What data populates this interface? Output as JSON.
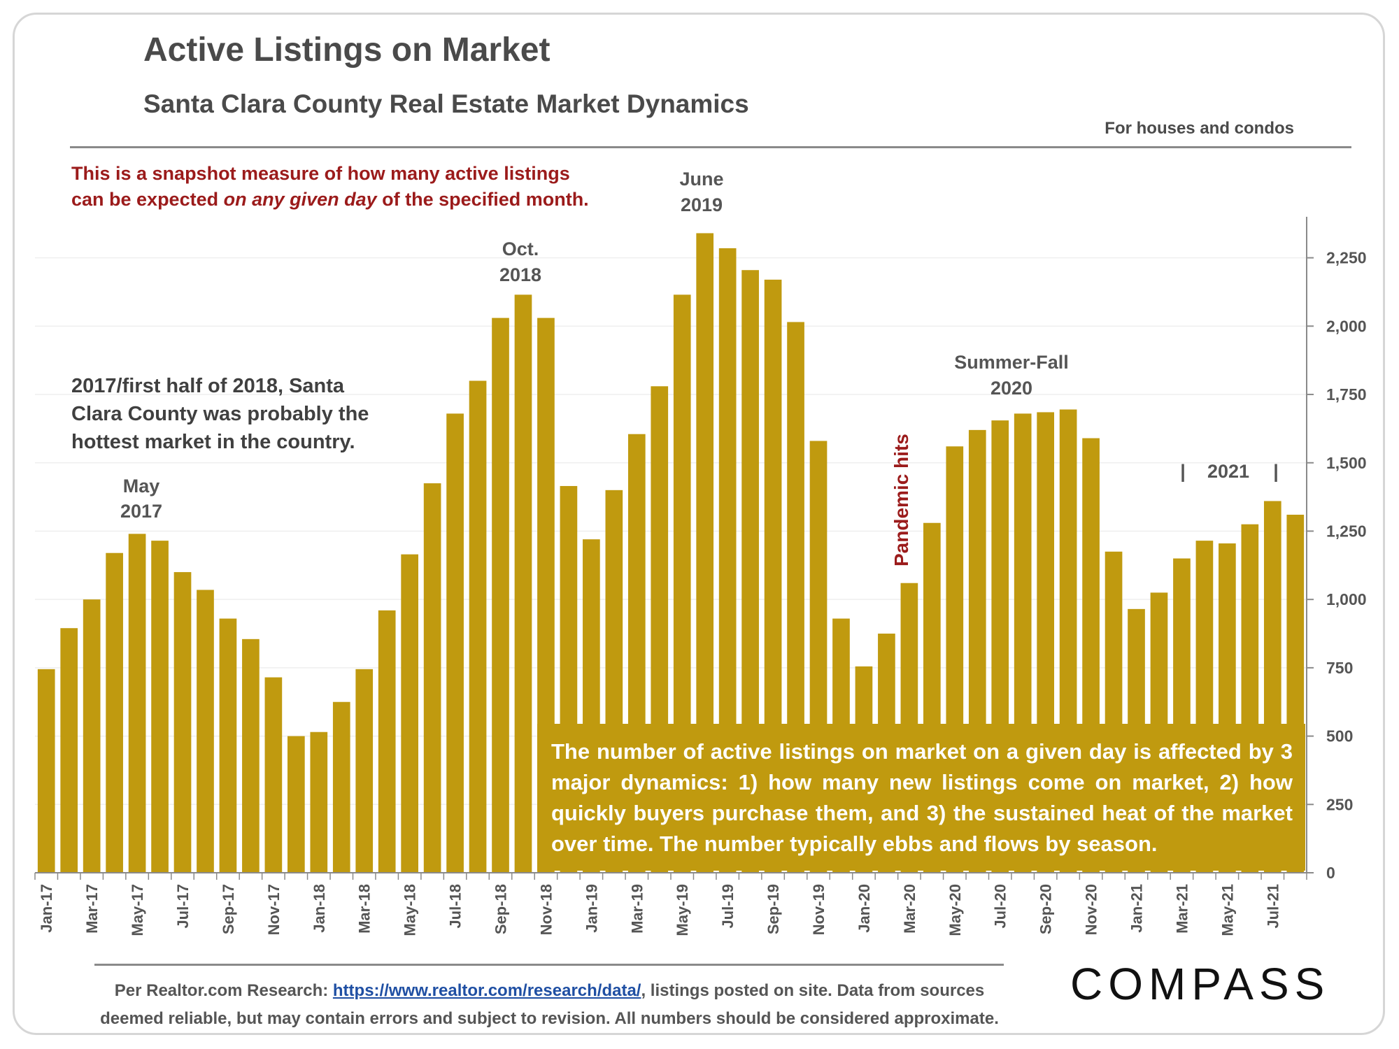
{
  "header": {
    "title": "Active Listings on Market",
    "subtitle": "Santa Clara County Real Estate Market Dynamics",
    "scope": "For houses and condos"
  },
  "note": {
    "line1": "This is a snapshot measure of how many active listings",
    "line2_prefix": "can be expected ",
    "line2_emph": "on any given day",
    "line2_suffix": " of the specified month."
  },
  "annotations": {
    "may2017_line1": "May",
    "may2017_line2": "2017",
    "oct2018_line1": "Oct.",
    "oct2018_line2": "2018",
    "june2019_line1": "June",
    "june2019_line2": "2019",
    "summerfall_line1": "Summer-Fall",
    "summerfall_line2": "2020",
    "pandemic": "Pandemic hits",
    "year2021": "2021",
    "year2021_bar_left": "|",
    "year2021_bar_right": "|",
    "hottest_line1": "2017/first half of 2018, Santa",
    "hottest_line2": "Clara County was probably the",
    "hottest_line3": "hottest market in the country."
  },
  "callout": {
    "text": "The number of active listings on market on a given day is affected by 3 major dynamics: 1) how many new listings come on market, 2) how quickly buyers purchase them, and 3) the sustained heat of the market over time. The number typically ebbs and flows by season."
  },
  "footer": {
    "source_prefix": "Per Realtor.com Research: ",
    "source_link": "https://www.realtor.com/research/data/",
    "source_suffix": ", listings posted on site. Data from sources",
    "source_line2": "deemed reliable, but may contain errors and subject to revision. All numbers should be considered approximate.",
    "logo": "COMPASS"
  },
  "colors": {
    "bar": "#c09a0f",
    "note": "#9b1b1b",
    "text": "#4a4a4a",
    "link": "#1f4fa3"
  },
  "chart_data": {
    "type": "bar",
    "categories": [
      "Jan-17",
      "Feb-17",
      "Mar-17",
      "Apr-17",
      "May-17",
      "Jun-17",
      "Jul-17",
      "Aug-17",
      "Sep-17",
      "Oct-17",
      "Nov-17",
      "Dec-17",
      "Jan-18",
      "Feb-18",
      "Mar-18",
      "Apr-18",
      "May-18",
      "Jun-18",
      "Jul-18",
      "Aug-18",
      "Sep-18",
      "Oct-18",
      "Nov-18",
      "Dec-18",
      "Jan-19",
      "Feb-19",
      "Mar-19",
      "Apr-19",
      "May-19",
      "Jun-19",
      "Jul-19",
      "Aug-19",
      "Sep-19",
      "Oct-19",
      "Nov-19",
      "Dec-19",
      "Jan-20",
      "Feb-20",
      "Mar-20",
      "Apr-20",
      "May-20",
      "Jun-20",
      "Jul-20",
      "Aug-20",
      "Sep-20",
      "Oct-20",
      "Nov-20",
      "Dec-20",
      "Jan-21",
      "Feb-21",
      "Mar-21",
      "Apr-21",
      "May-21",
      "Jun-21",
      "Jul-21",
      "Aug-21"
    ],
    "tick_labels": [
      "Jan-17",
      "Mar-17",
      "May-17",
      "Jul-17",
      "Sep-17",
      "Nov-17",
      "Jan-18",
      "Mar-18",
      "May-18",
      "Jul-18",
      "Sep-18",
      "Nov-18",
      "Jan-19",
      "Mar-19",
      "May-19",
      "Jul-19",
      "Sep-19",
      "Nov-19",
      "Jan-20",
      "Mar-20",
      "May-20",
      "Jul-20",
      "Sep-20",
      "Nov-20",
      "Jan-21",
      "Mar-21",
      "May-21",
      "Jul-21"
    ],
    "values": [
      745,
      895,
      1000,
      1170,
      1240,
      1215,
      1100,
      1035,
      930,
      855,
      715,
      500,
      515,
      625,
      745,
      960,
      1165,
      1425,
      1680,
      1800,
      2030,
      2115,
      2030,
      1415,
      1220,
      1400,
      1605,
      1780,
      2115,
      2340,
      2285,
      2205,
      2170,
      2015,
      1580,
      930,
      755,
      875,
      1060,
      1280,
      1560,
      1620,
      1655,
      1680,
      1685,
      1695,
      1590,
      1175,
      965,
      1025,
      1150,
      1215,
      1205,
      1275,
      1360,
      1310
    ],
    "yticks": [
      0,
      250,
      500,
      750,
      1000,
      1250,
      1500,
      1750,
      2000,
      2250
    ],
    "ytick_labels": [
      "0",
      "250",
      "500",
      "750",
      "1,000",
      "1,250",
      "1,500",
      "1,750",
      "2,000",
      "2,250"
    ],
    "ylim": [
      0,
      2400
    ],
    "y_axis_side": "right",
    "grid": true,
    "legend": "none"
  }
}
